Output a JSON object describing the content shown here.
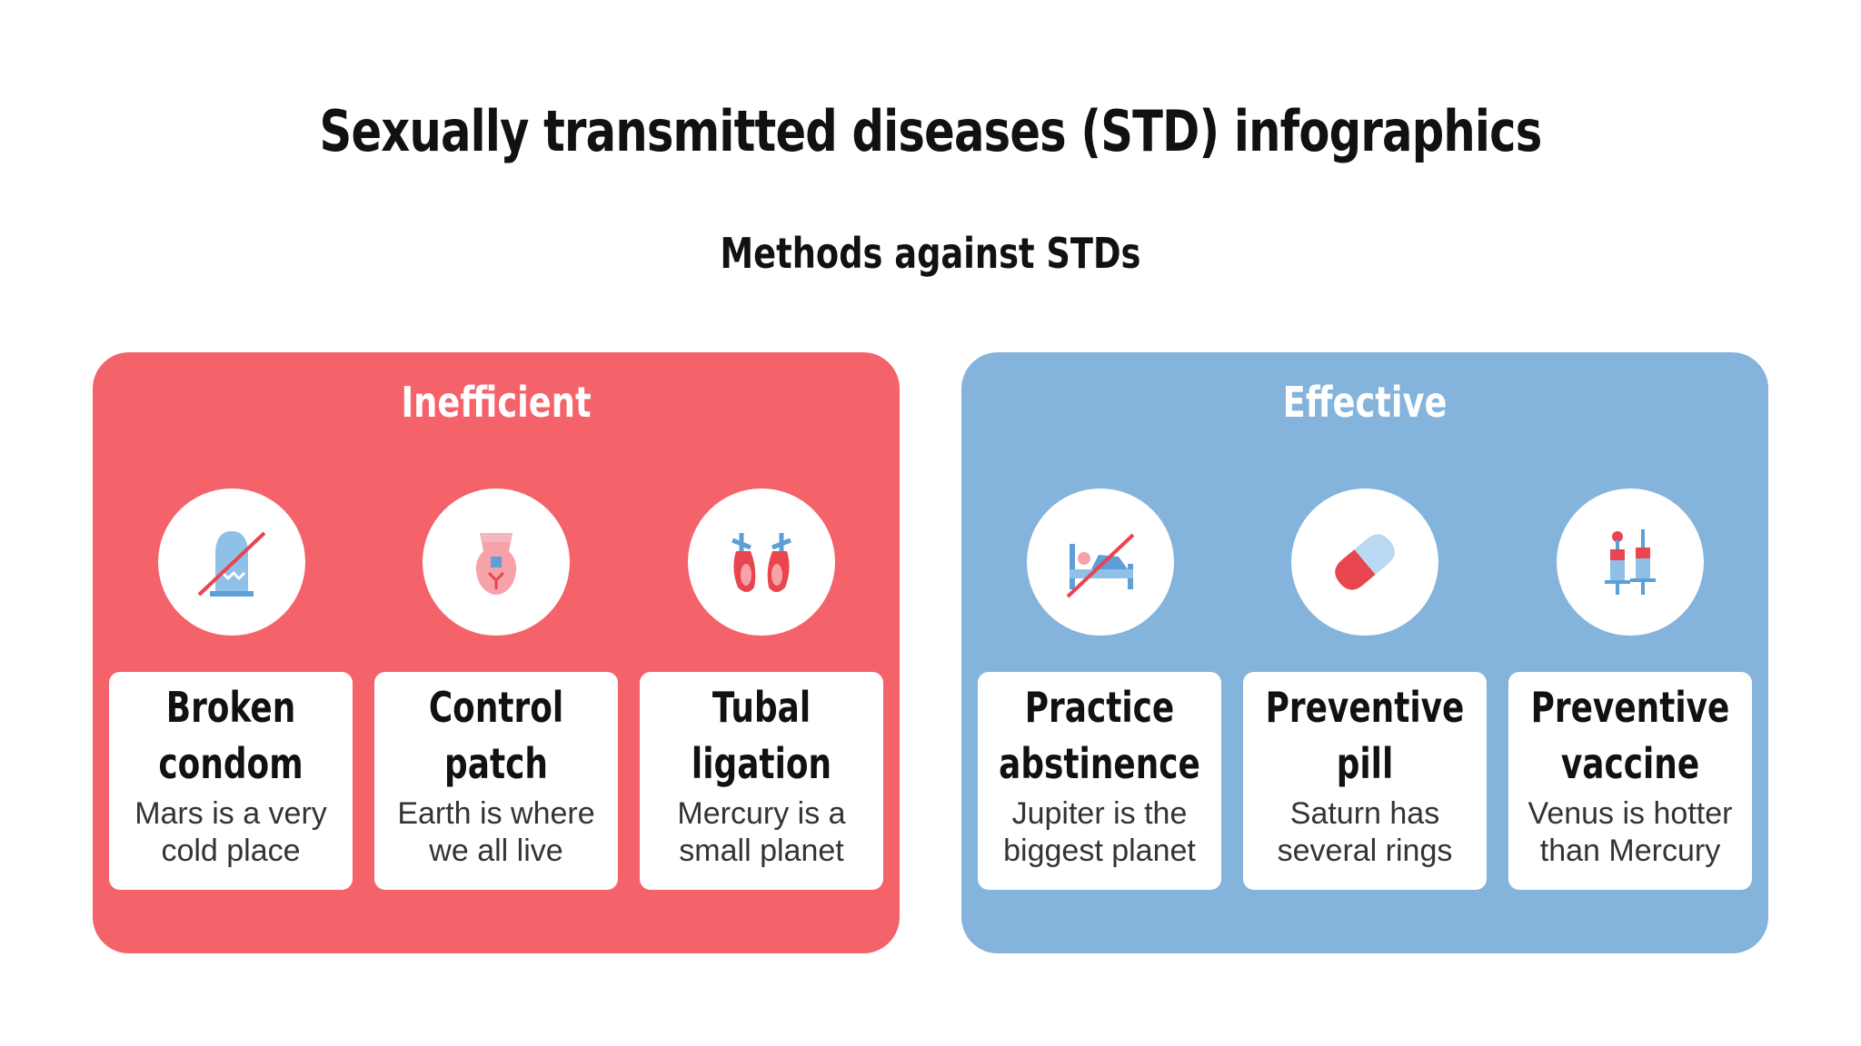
{
  "title": "Sexually transmitted diseases (STD) infographics",
  "subtitle": "Methods against STDs",
  "colors": {
    "inefficient": "#f4626a",
    "effective": "#84b3db",
    "icon_blue": "#7fb2df",
    "icon_red": "#e8454f"
  },
  "inefficient": {
    "heading": "Inefficient",
    "items": [
      {
        "icon": "broken-condom-icon",
        "title_line1": "Broken",
        "title_line2": "condom",
        "desc_line1": "Mars is a very",
        "desc_line2": "cold place"
      },
      {
        "icon": "control-patch-icon",
        "title_line1": "Control",
        "title_line2": "patch",
        "desc_line1": "Earth is where",
        "desc_line2": "we all live"
      },
      {
        "icon": "tubal-ligation-icon",
        "title_line1": "Tubal",
        "title_line2": "ligation",
        "desc_line1": "Mercury is a",
        "desc_line2": "small planet"
      }
    ]
  },
  "effective": {
    "heading": "Effective",
    "items": [
      {
        "icon": "abstinence-bed-icon",
        "title_line1": "Practice",
        "title_line2": "abstinence",
        "desc_line1": "Jupiter is the",
        "desc_line2": "biggest planet"
      },
      {
        "icon": "pill-icon",
        "title_line1": "Preventive",
        "title_line2": "pill",
        "desc_line1": "Saturn has",
        "desc_line2": "several rings"
      },
      {
        "icon": "vaccine-syringe-icon",
        "title_line1": "Preventive",
        "title_line2": "vaccine",
        "desc_line1": "Venus is hotter",
        "desc_line2": "than Mercury"
      }
    ]
  }
}
